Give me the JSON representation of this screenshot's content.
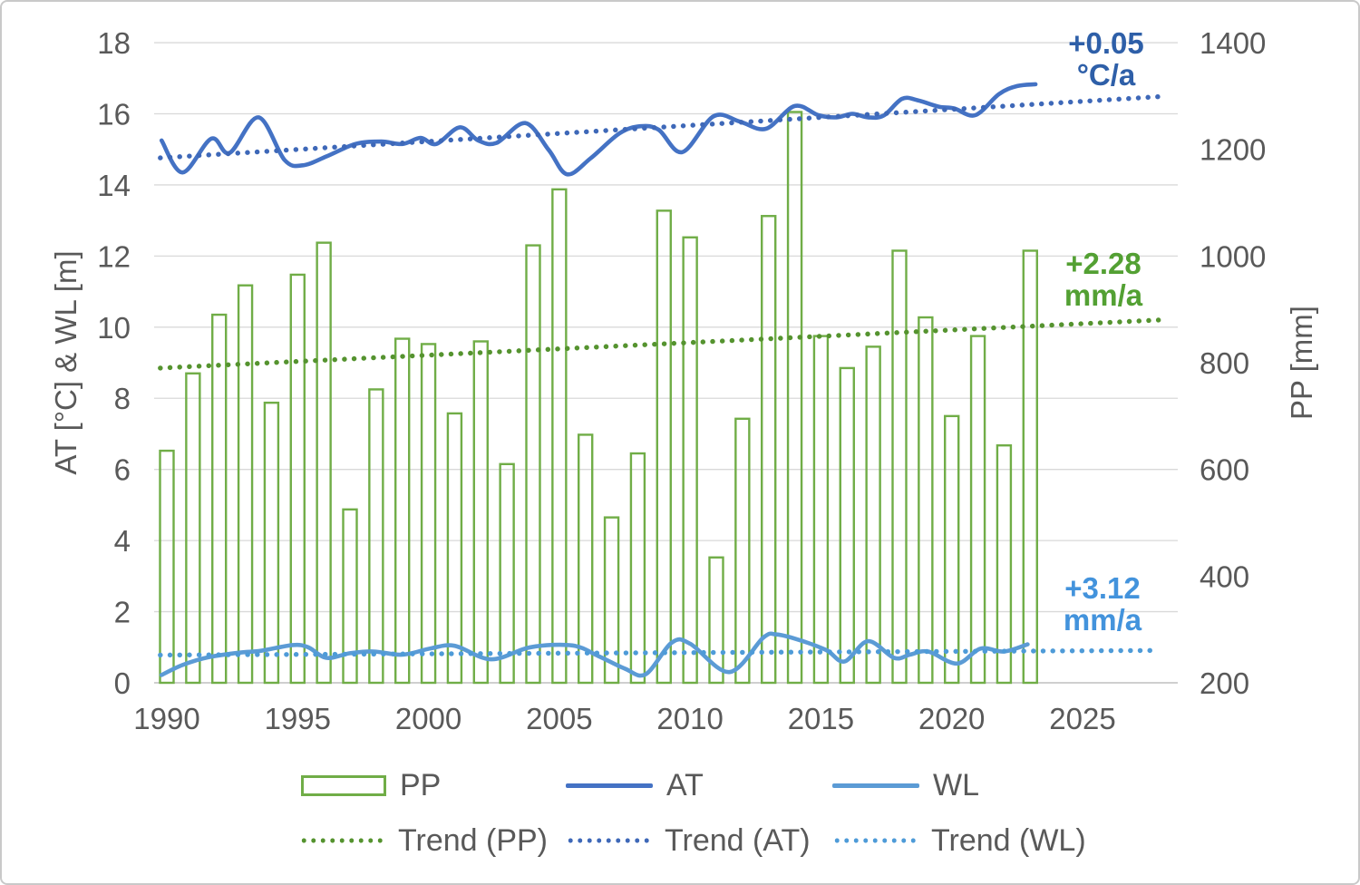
{
  "figure": {
    "left_axis_title": "AT [°C] & WL [m]",
    "right_axis_title": "PP [mm]",
    "annotations": {
      "at": {
        "value": "+0.05",
        "unit": "°C/a"
      },
      "pp": {
        "value": "+2.28",
        "unit": "mm/a"
      },
      "wl": {
        "value": "+3.12",
        "unit": "mm/a"
      }
    },
    "legend": {
      "pp": "PP",
      "at": "AT",
      "wl": "WL",
      "trend_pp": "Trend (PP)",
      "trend_at": "Trend (AT)",
      "trend_wl": "Trend (WL)"
    }
  },
  "colors": {
    "pp_green": "#70AD47",
    "trend_pp_green": "#55932F",
    "at_blue": "#4472C4",
    "trend_at_blue": "#3E68B8",
    "wl_blue": "#5B9BD5",
    "trend_wl_blue": "#4E9BD8",
    "annotation_at_blue": "#2E5FA8",
    "annotation_pp_green": "#53A033",
    "annotation_wl_blue": "#4393DC",
    "axis_text": "#595959",
    "gridline": "#D9D9D9",
    "axis_line": "#BFBFBF"
  },
  "chart_data": {
    "type": "combo-bar-line",
    "title": "",
    "left_axis": {
      "label": "AT [°C] & WL [m]",
      "min": 0,
      "max": 18,
      "ticks": [
        0,
        2,
        4,
        6,
        8,
        10,
        12,
        14,
        16,
        18
      ]
    },
    "right_axis": {
      "label": "PP [mm]",
      "min": 200,
      "max": 1400,
      "ticks": [
        200,
        400,
        600,
        800,
        1000,
        1200,
        1400
      ]
    },
    "x_axis": {
      "ticks": [
        1990,
        1995,
        2000,
        2005,
        2010,
        2015,
        2020,
        2025
      ]
    },
    "grid": true,
    "legend_position": "bottom",
    "years": [
      1990,
      1991,
      1992,
      1993,
      1994,
      1995,
      1996,
      1997,
      1998,
      1999,
      2000,
      2001,
      2002,
      2003,
      2004,
      2005,
      2006,
      2007,
      2008,
      2009,
      2010,
      2011,
      2012,
      2013,
      2014,
      2015,
      2016,
      2017,
      2018,
      2019,
      2020,
      2021,
      2022,
      2023
    ],
    "series": [
      {
        "name": "PP",
        "type": "bar",
        "axis": "right",
        "unit": "mm",
        "values": [
          635,
          780,
          890,
          945,
          725,
          965,
          1025,
          525,
          750,
          845,
          835,
          705,
          840,
          610,
          1020,
          1125,
          665,
          510,
          630,
          1085,
          1035,
          435,
          695,
          1075,
          1270,
          850,
          790,
          830,
          1010,
          885,
          700,
          850,
          645,
          1010
        ]
      },
      {
        "name": "AT",
        "type": "smooth-line",
        "axis": "left",
        "unit": "°C",
        "points": [
          [
            1989.8,
            15.25
          ],
          [
            1990.6,
            14.35
          ],
          [
            1991.7,
            15.3
          ],
          [
            1992.4,
            14.9
          ],
          [
            1993.5,
            15.9
          ],
          [
            1994.5,
            14.7
          ],
          [
            1995.2,
            14.55
          ],
          [
            1996.1,
            14.8
          ],
          [
            1997.2,
            15.15
          ],
          [
            1998.2,
            15.22
          ],
          [
            1999.0,
            15.15
          ],
          [
            1999.7,
            15.32
          ],
          [
            2000.3,
            15.15
          ],
          [
            2001.2,
            15.62
          ],
          [
            2001.9,
            15.25
          ],
          [
            2002.6,
            15.18
          ],
          [
            2003.7,
            15.74
          ],
          [
            2004.6,
            14.98
          ],
          [
            2005.3,
            14.3
          ],
          [
            2006.2,
            14.75
          ],
          [
            2007.3,
            15.45
          ],
          [
            2008.1,
            15.65
          ],
          [
            2008.8,
            15.55
          ],
          [
            2009.7,
            14.92
          ],
          [
            2010.9,
            15.93
          ],
          [
            2011.9,
            15.78
          ],
          [
            2012.9,
            15.58
          ],
          [
            2014.0,
            16.22
          ],
          [
            2014.9,
            15.96
          ],
          [
            2015.6,
            15.9
          ],
          [
            2016.2,
            16.0
          ],
          [
            2016.8,
            15.9
          ],
          [
            2017.4,
            15.95
          ],
          [
            2018.1,
            16.42
          ],
          [
            2018.7,
            16.38
          ],
          [
            2019.5,
            16.2
          ],
          [
            2020.1,
            16.15
          ],
          [
            2020.9,
            15.96
          ],
          [
            2021.8,
            16.55
          ],
          [
            2022.5,
            16.78
          ],
          [
            2023.2,
            16.83
          ]
        ]
      },
      {
        "name": "WL",
        "type": "smooth-line",
        "axis": "left",
        "unit": "m",
        "points": [
          [
            1989.8,
            0.22
          ],
          [
            1990.6,
            0.5
          ],
          [
            1991.6,
            0.72
          ],
          [
            1992.8,
            0.85
          ],
          [
            1993.6,
            0.9
          ],
          [
            1994.8,
            1.06
          ],
          [
            1995.4,
            1.0
          ],
          [
            1996.1,
            0.7
          ],
          [
            1997.0,
            0.83
          ],
          [
            1997.9,
            0.88
          ],
          [
            1999.0,
            0.79
          ],
          [
            2000.1,
            0.97
          ],
          [
            2001.0,
            1.04
          ],
          [
            2002.4,
            0.66
          ],
          [
            2003.9,
            1.0
          ],
          [
            2005.5,
            1.05
          ],
          [
            2006.5,
            0.75
          ],
          [
            2007.5,
            0.4
          ],
          [
            2008.3,
            0.24
          ],
          [
            2009.3,
            1.13
          ],
          [
            2010.0,
            1.1
          ],
          [
            2011.5,
            0.3
          ],
          [
            2012.8,
            1.27
          ],
          [
            2013.3,
            1.36
          ],
          [
            2014.1,
            1.22
          ],
          [
            2015.2,
            0.92
          ],
          [
            2015.9,
            0.6
          ],
          [
            2016.8,
            1.17
          ],
          [
            2017.8,
            0.7
          ],
          [
            2018.4,
            0.79
          ],
          [
            2019.1,
            0.88
          ],
          [
            2020.2,
            0.54
          ],
          [
            2021.1,
            0.96
          ],
          [
            2022.0,
            0.88
          ],
          [
            2022.9,
            1.08
          ]
        ]
      },
      {
        "name": "Trend (PP)",
        "type": "trend",
        "axis": "right",
        "unit": "mm",
        "slope_label": "+2.28 mm/a",
        "start": [
          1989.75,
          790
        ],
        "end": [
          2027.9,
          880
        ]
      },
      {
        "name": "Trend (AT)",
        "type": "trend",
        "axis": "left",
        "unit": "°C",
        "slope_label": "+0.05 °C/a",
        "start": [
          1989.75,
          14.76
        ],
        "end": [
          2027.9,
          16.48
        ]
      },
      {
        "name": "Trend (WL)",
        "type": "trend",
        "axis": "left",
        "unit": "m",
        "slope_label": "+3.12 mm/a",
        "start": [
          1989.75,
          0.78
        ],
        "end": [
          2027.9,
          0.91
        ]
      }
    ]
  }
}
